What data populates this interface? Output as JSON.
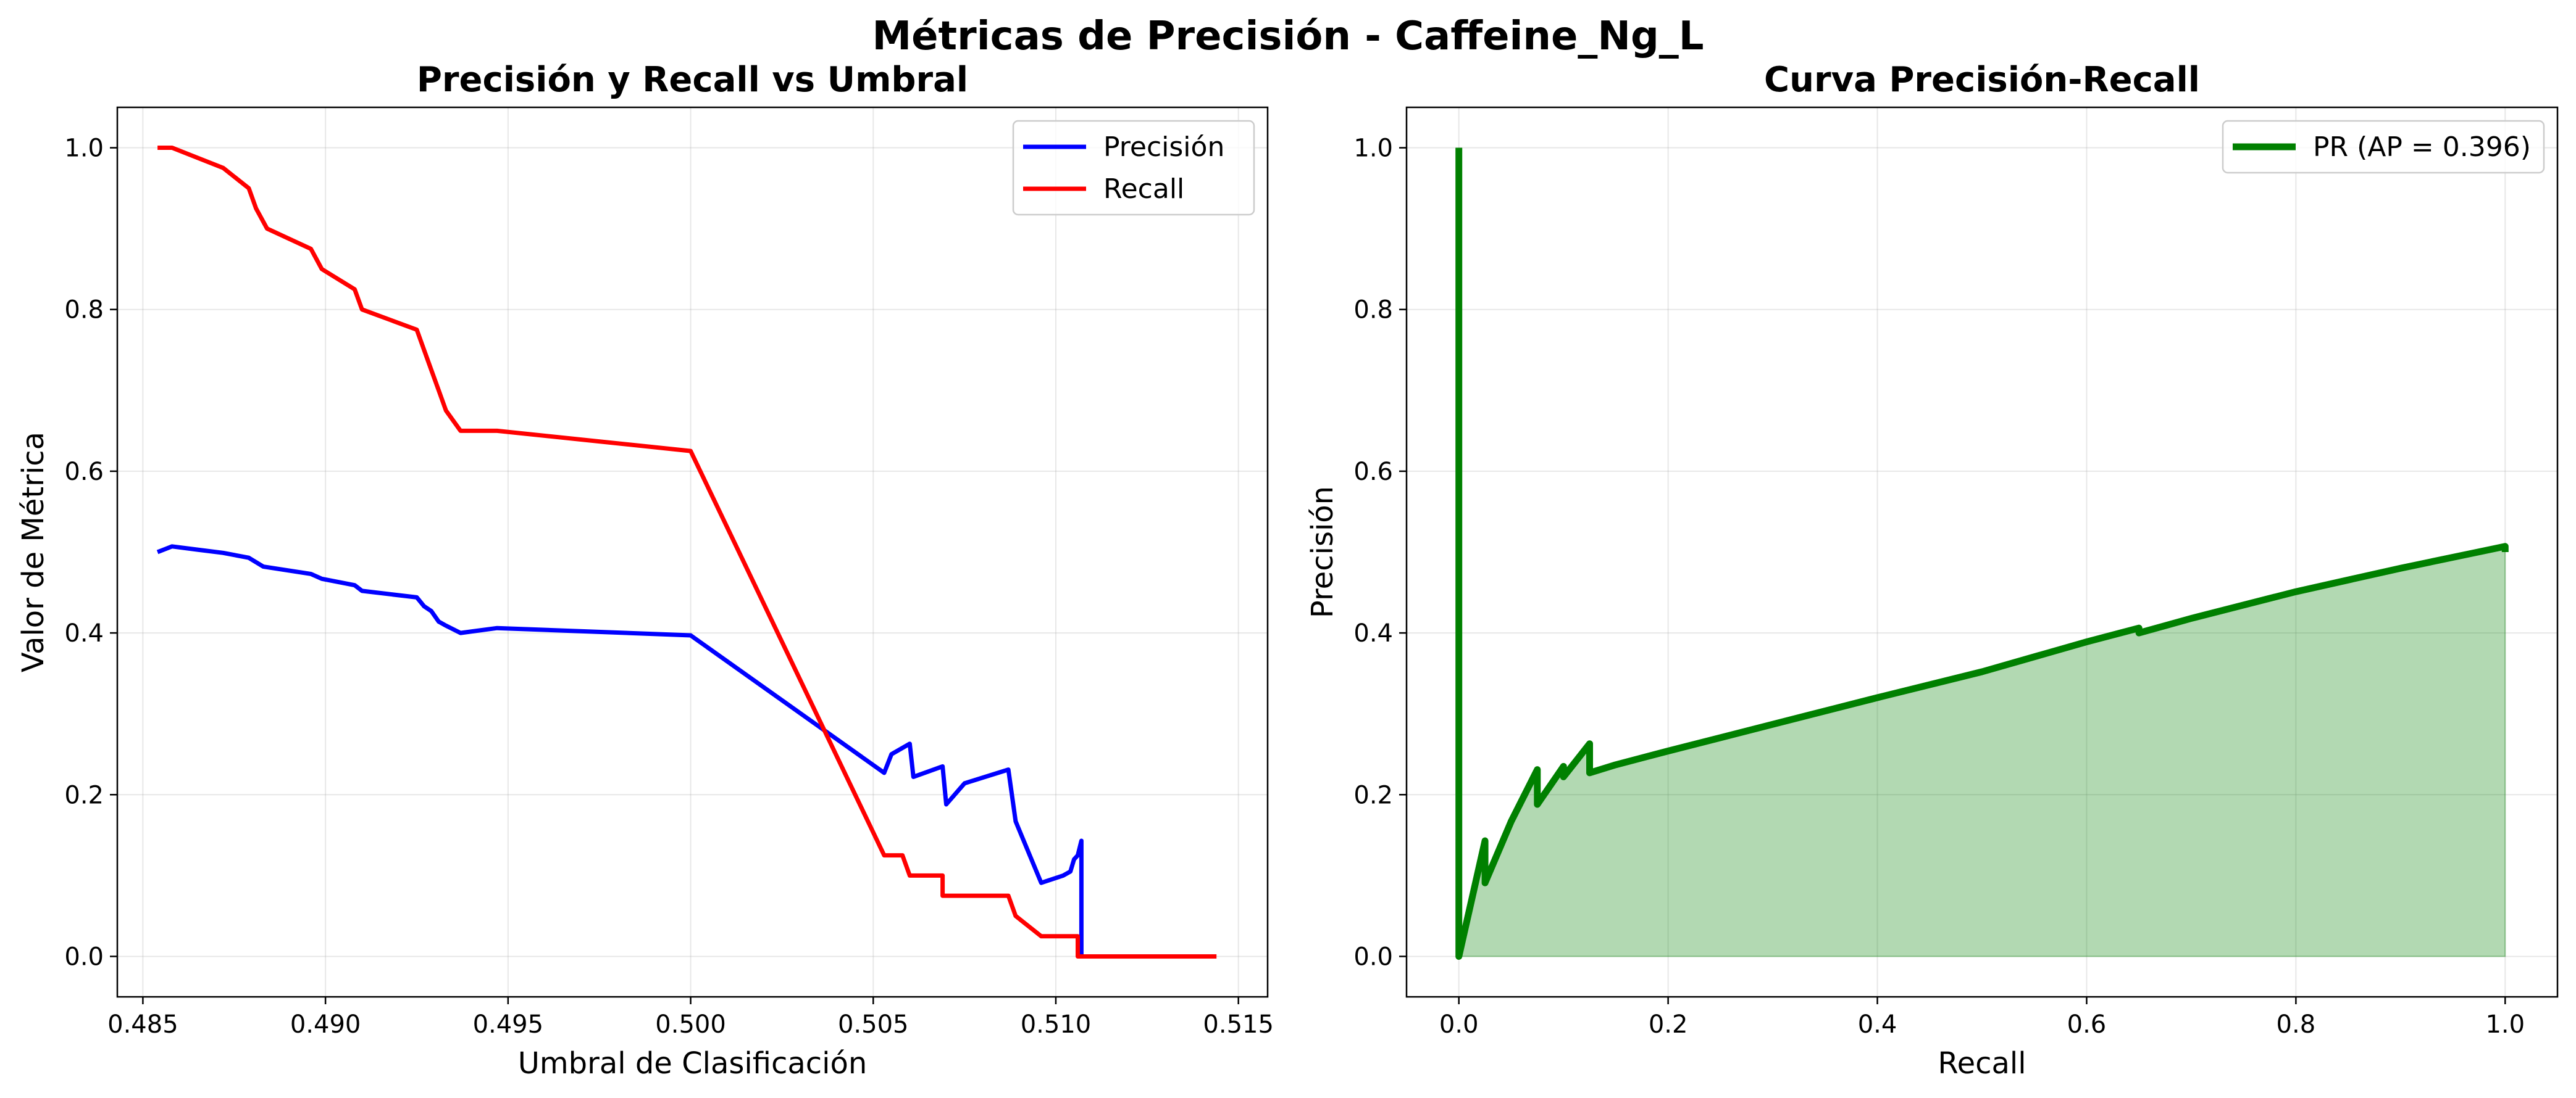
{
  "figure": {
    "suptitle": "Métricas de Precisión - Caffeine_Ng_L"
  },
  "chart_data": [
    {
      "type": "line",
      "title": "Precisión y Recall vs Umbral",
      "xlabel": "Umbral de Clasificación",
      "ylabel": "Valor de Métrica",
      "xlim": [
        0.4843,
        0.5158
      ],
      "ylim": [
        -0.05,
        1.05
      ],
      "xticks": [
        0.485,
        0.49,
        0.495,
        0.5,
        0.505,
        0.51,
        0.515
      ],
      "xtick_labels": [
        "0.485",
        "0.490",
        "0.495",
        "0.500",
        "0.505",
        "0.510",
        "0.515"
      ],
      "yticks": [
        0.0,
        0.2,
        0.4,
        0.6,
        0.8,
        1.0
      ],
      "ytick_labels": [
        "0.0",
        "0.2",
        "0.4",
        "0.6",
        "0.8",
        "1.0"
      ],
      "grid": true,
      "legend": "upper right",
      "series": [
        {
          "name": "Precisión",
          "color": "#0000ff",
          "x": [
            0.4854,
            0.4858,
            0.4865,
            0.4872,
            0.4879,
            0.4883,
            0.4896,
            0.4899,
            0.4908,
            0.491,
            0.4925,
            0.4927,
            0.4929,
            0.4931,
            0.4933,
            0.4937,
            0.4947,
            0.5,
            0.5053,
            0.5055,
            0.506,
            0.5061,
            0.5069,
            0.507,
            0.5075,
            0.5087,
            0.5089,
            0.5096,
            0.5102,
            0.5104,
            0.5105,
            0.5106,
            0.5107,
            0.5107
          ],
          "y": [
            0.5,
            0.507,
            0.503,
            0.499,
            0.493,
            0.482,
            0.473,
            0.467,
            0.459,
            0.452,
            0.444,
            0.433,
            0.427,
            0.414,
            0.409,
            0.4,
            0.406,
            0.397,
            0.227,
            0.25,
            0.263,
            0.222,
            0.235,
            0.188,
            0.214,
            0.231,
            0.167,
            0.091,
            0.1,
            0.105,
            0.12,
            0.125,
            0.143,
            0.0
          ]
        },
        {
          "name": "Recall",
          "color": "#ff0000",
          "x": [
            0.4854,
            0.4858,
            0.4872,
            0.4879,
            0.4881,
            0.4884,
            0.4896,
            0.4899,
            0.4908,
            0.491,
            0.4925,
            0.4927,
            0.4929,
            0.4931,
            0.4933,
            0.4937,
            0.4947,
            0.5,
            0.5053,
            0.5058,
            0.506,
            0.5069,
            0.5069,
            0.5087,
            0.5089,
            0.5096,
            0.5106,
            0.5106,
            0.5144
          ],
          "y": [
            1.0,
            1.0,
            0.975,
            0.95,
            0.925,
            0.9,
            0.875,
            0.85,
            0.825,
            0.8,
            0.775,
            0.75,
            0.725,
            0.7,
            0.675,
            0.65,
            0.65,
            0.625,
            0.125,
            0.125,
            0.1,
            0.1,
            0.075,
            0.075,
            0.05,
            0.025,
            0.025,
            0.0,
            0.0
          ]
        }
      ]
    },
    {
      "type": "area",
      "title": "Curva Precisión-Recall",
      "xlabel": "Recall",
      "ylabel": "Precisión",
      "xlim": [
        -0.05,
        1.05
      ],
      "ylim": [
        -0.05,
        1.05
      ],
      "xticks": [
        0.0,
        0.2,
        0.4,
        0.6,
        0.8,
        1.0
      ],
      "xtick_labels": [
        "0.0",
        "0.2",
        "0.4",
        "0.6",
        "0.8",
        "1.0"
      ],
      "yticks": [
        0.0,
        0.2,
        0.4,
        0.6,
        0.8,
        1.0
      ],
      "ytick_labels": [
        "0.0",
        "0.2",
        "0.4",
        "0.6",
        "0.8",
        "1.0"
      ],
      "grid": true,
      "legend": "upper right",
      "series": [
        {
          "name": "PR (AP = 0.396)",
          "color": "#008000",
          "fill_color": "#008000",
          "x": [
            0.0,
            0.0,
            0.025,
            0.025,
            0.05,
            0.075,
            0.075,
            0.1,
            0.1,
            0.125,
            0.125,
            0.15,
            0.2,
            0.3,
            0.4,
            0.5,
            0.6,
            0.65,
            0.65,
            0.7,
            0.8,
            0.9,
            1.0,
            1.0
          ],
          "y": [
            1.0,
            0.0,
            0.143,
            0.091,
            0.167,
            0.231,
            0.188,
            0.235,
            0.222,
            0.263,
            0.227,
            0.237,
            0.254,
            0.287,
            0.32,
            0.352,
            0.389,
            0.406,
            0.4,
            0.418,
            0.451,
            0.48,
            0.507,
            0.5
          ]
        }
      ]
    }
  ]
}
